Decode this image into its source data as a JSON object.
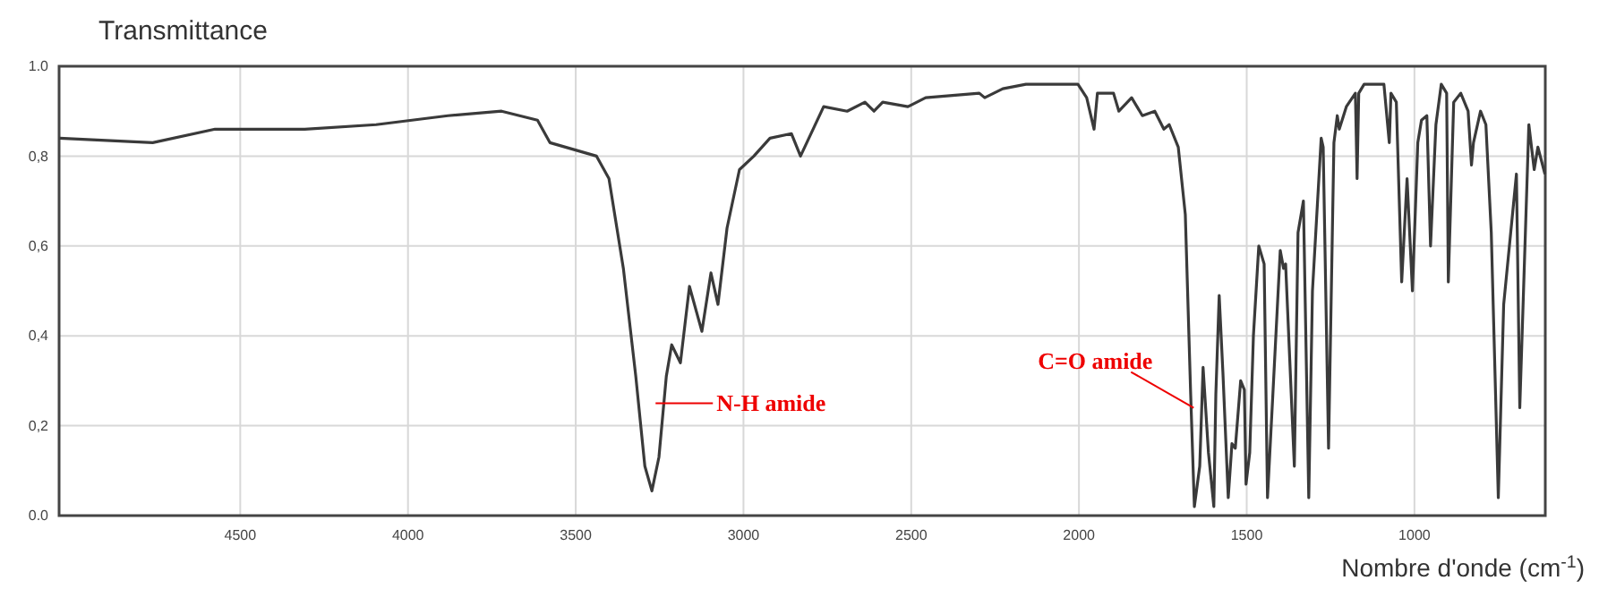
{
  "chart_data": {
    "type": "line",
    "ylabel": "Transmittance",
    "xlabel": "Nombre d'onde (cm$^{-1}$)",
    "xlim": [
      5040,
      610
    ],
    "ylim": [
      0,
      1
    ],
    "xticks": [
      4500,
      4000,
      3500,
      3000,
      2500,
      2000,
      1500,
      1000
    ],
    "yticks": [
      {
        "value": 0,
        "label": "0.0"
      },
      {
        "value": 0.2,
        "label": "0,2"
      },
      {
        "value": 0.4,
        "label": "0,4"
      },
      {
        "value": 0.6,
        "label": "0,6"
      },
      {
        "value": 0.8,
        "label": "0,8"
      },
      {
        "value": 1,
        "label": "1.0"
      }
    ],
    "grid": true,
    "line_style": "solid",
    "marker": "none",
    "series": [
      {
        "color": "#3a3a3a",
        "x": [
          5039,
          4761,
          4575,
          4308,
          4095,
          3881,
          3721,
          3614,
          3577,
          3438,
          3401,
          3358,
          3321,
          3294,
          3273,
          3252,
          3230,
          3214,
          3188,
          3161,
          3124,
          3097,
          3076,
          3049,
          3012,
          2969,
          2921,
          2857,
          2830,
          2761,
          2691,
          2638,
          2611,
          2585,
          2510,
          2457,
          2297,
          2281,
          2227,
          2158,
          2003,
          1977,
          1955,
          1945,
          1897,
          1881,
          1843,
          1811,
          1774,
          1747,
          1731,
          1704,
          1683,
          1667,
          1656,
          1640,
          1630,
          1614,
          1598,
          1592,
          1582,
          1571,
          1555,
          1544,
          1534,
          1518,
          1507,
          1502,
          1491,
          1480,
          1464,
          1448,
          1438,
          1422,
          1400,
          1390,
          1384,
          1358,
          1347,
          1331,
          1315,
          1304,
          1278,
          1272,
          1256,
          1240,
          1230,
          1224,
          1203,
          1176,
          1171,
          1166,
          1150,
          1091,
          1075,
          1070,
          1054,
          1038,
          1022,
          1006,
          990,
          979,
          963,
          952,
          936,
          920,
          904,
          899,
          883,
          862,
          840,
          830,
          824,
          803,
          787,
          771,
          750,
          734,
          696,
          686,
          659,
          643,
          632,
          611
        ],
        "values": [
          0.84,
          0.83,
          0.86,
          0.86,
          0.87,
          0.89,
          0.9,
          0.88,
          0.83,
          0.8,
          0.75,
          0.55,
          0.31,
          0.11,
          0.055,
          0.13,
          0.31,
          0.38,
          0.34,
          0.51,
          0.41,
          0.54,
          0.47,
          0.64,
          0.77,
          0.8,
          0.84,
          0.85,
          0.8,
          0.91,
          0.9,
          0.92,
          0.9,
          0.92,
          0.91,
          0.93,
          0.94,
          0.93,
          0.95,
          0.96,
          0.96,
          0.93,
          0.86,
          0.94,
          0.94,
          0.9,
          0.93,
          0.89,
          0.9,
          0.86,
          0.87,
          0.82,
          0.67,
          0.27,
          0.02,
          0.11,
          0.33,
          0.14,
          0.02,
          0.27,
          0.49,
          0.32,
          0.04,
          0.16,
          0.15,
          0.3,
          0.28,
          0.07,
          0.14,
          0.4,
          0.6,
          0.56,
          0.04,
          0.27,
          0.59,
          0.55,
          0.56,
          0.11,
          0.63,
          0.7,
          0.04,
          0.5,
          0.84,
          0.82,
          0.15,
          0.83,
          0.89,
          0.86,
          0.91,
          0.94,
          0.75,
          0.94,
          0.96,
          0.96,
          0.83,
          0.94,
          0.92,
          0.52,
          0.75,
          0.5,
          0.83,
          0.88,
          0.89,
          0.6,
          0.87,
          0.96,
          0.94,
          0.52,
          0.92,
          0.94,
          0.9,
          0.78,
          0.83,
          0.9,
          0.87,
          0.63,
          0.04,
          0.47,
          0.76,
          0.24,
          0.87,
          0.77,
          0.82,
          0.76
        ]
      }
    ],
    "annotations": [
      {
        "text": "N-H amide",
        "x": 3262,
        "y": 0.25
      },
      {
        "text": "C=O amide",
        "x": 1658,
        "y": 0.24
      }
    ]
  }
}
